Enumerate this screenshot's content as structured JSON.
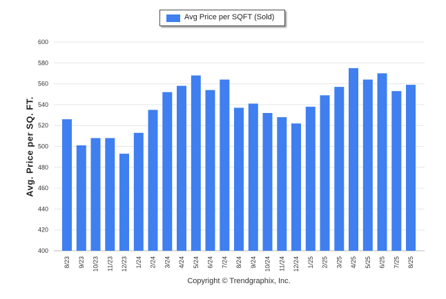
{
  "chart_data": {
    "type": "bar",
    "categories": [
      "8/23",
      "9/23",
      "10/23",
      "11/23",
      "12/23",
      "1/24",
      "2/24",
      "3/24",
      "4/24",
      "5/24",
      "6/24",
      "7/24",
      "8/24",
      "9/24",
      "10/24",
      "11/24",
      "12/24",
      "1/25",
      "2/25",
      "3/25",
      "4/25",
      "5/25",
      "6/25",
      "7/25",
      "8/25"
    ],
    "series": [
      {
        "name": "Avg Price per SQFT (Sold)",
        "values": [
          526,
          501,
          508,
          508,
          493,
          513,
          535,
          552,
          558,
          568,
          554,
          564,
          537,
          541,
          532,
          528,
          522,
          538,
          549,
          557,
          575,
          564,
          570,
          553,
          559
        ]
      }
    ],
    "ylabel": "Avg. Price per SQ. FT.",
    "xlabel": "",
    "ylim": [
      400,
      600
    ],
    "yticks": [
      400,
      420,
      440,
      460,
      480,
      500,
      520,
      540,
      560,
      580,
      600
    ],
    "grid": true,
    "legend_position": "top-center",
    "bar_color": "#3f7ff0"
  },
  "footer": {
    "copyright": "Copyright © Trendgraphix, Inc."
  }
}
